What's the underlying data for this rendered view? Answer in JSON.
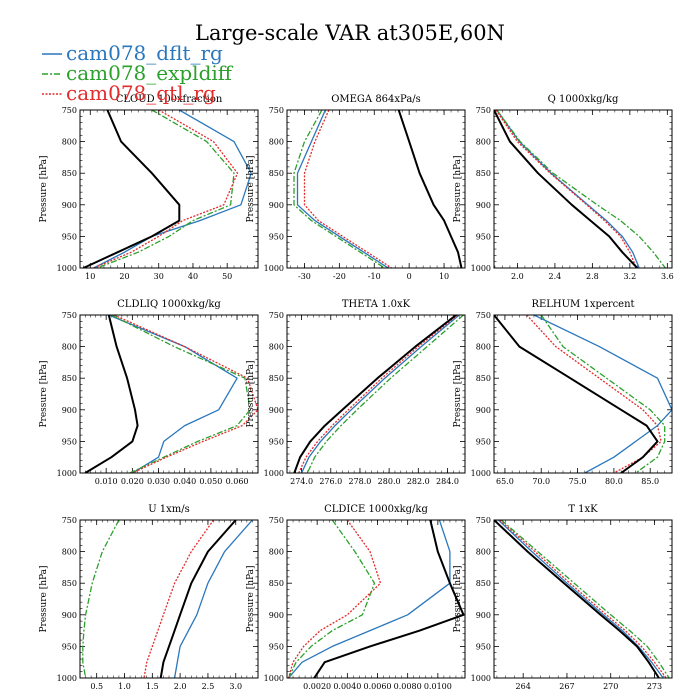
{
  "figure": {
    "title": "Large-scale VAR at305E,60N"
  },
  "legend": [
    {
      "label": "cam078_dflt_rg",
      "color": "#2a77bd",
      "dash": ""
    },
    {
      "label": "cam078_expldiff",
      "color": "#2ca02c",
      "dash": "6,2,2,2"
    },
    {
      "label": "cam078_qtl_rg",
      "color": "#e32b2b",
      "dash": "2,1.5"
    }
  ],
  "ref_series": {
    "label": "",
    "color": "#000000"
  },
  "chart_data": [
    {
      "type": "line",
      "title": "CLOUD 100xfraction",
      "ylabel": "Pressure [hPa]",
      "xlim": [
        7,
        59
      ],
      "ylim": [
        1000,
        750
      ],
      "xticks": [
        10,
        20,
        30,
        40,
        50
      ],
      "xticklabels": [
        "10",
        "20",
        "30",
        "40",
        "50"
      ],
      "yticks": [
        750,
        800,
        850,
        900,
        950,
        1000
      ],
      "levels": [
        750,
        800,
        850,
        900,
        925,
        950,
        975,
        1000
      ],
      "series": [
        {
          "name": "ref",
          "values": [
            15,
            19,
            28,
            36,
            36,
            28,
            18,
            8
          ]
        },
        {
          "name": "cam078_dflt_rg",
          "values": [
            36,
            52,
            57,
            54,
            42,
            28,
            20,
            11
          ]
        },
        {
          "name": "cam078_expldiff",
          "values": [
            28,
            44,
            52,
            51,
            40,
            33,
            24,
            12
          ]
        },
        {
          "name": "cam078_qtl_rg",
          "values": [
            30,
            46,
            53,
            49,
            37,
            30,
            22,
            11
          ]
        }
      ]
    },
    {
      "type": "line",
      "title": "OMEGA 864xPa/s",
      "ylabel": "Pressure [hPa]",
      "xlim": [
        -35,
        16
      ],
      "ylim": [
        1000,
        750
      ],
      "xticks": [
        -30,
        -20,
        -10,
        0,
        10
      ],
      "xticklabels": [
        "-30",
        "-20",
        "-10",
        "0",
        "10"
      ],
      "yticks": [
        750,
        800,
        850,
        900,
        950,
        1000
      ],
      "levels": [
        750,
        800,
        850,
        900,
        925,
        950,
        975,
        1000
      ],
      "series": [
        {
          "name": "ref",
          "values": [
            -3,
            0,
            3,
            7,
            10,
            12,
            14,
            15
          ]
        },
        {
          "name": "cam078_dflt_rg",
          "values": [
            -24,
            -28,
            -32,
            -32,
            -27,
            -20,
            -13,
            -6
          ]
        },
        {
          "name": "cam078_expldiff",
          "values": [
            -25,
            -30,
            -33,
            -33,
            -28,
            -21,
            -14,
            -7
          ]
        },
        {
          "name": "cam078_qtl_rg",
          "values": [
            -23,
            -27,
            -30,
            -30,
            -26,
            -19,
            -12,
            -5
          ]
        }
      ]
    },
    {
      "type": "line",
      "title": "Q 1000xkg/kg",
      "ylabel": "Pressure [hPa]",
      "xlim": [
        1.75,
        3.65
      ],
      "ylim": [
        1000,
        750
      ],
      "xticks": [
        2.0,
        2.4,
        2.8,
        3.2,
        3.6
      ],
      "xticklabels": [
        "2.0",
        "2.4",
        "2.8",
        "3.2",
        "3.6"
      ],
      "yticks": [
        750,
        800,
        850,
        900,
        950,
        1000
      ],
      "levels": [
        750,
        800,
        850,
        900,
        925,
        950,
        975,
        1000
      ],
      "series": [
        {
          "name": "ref",
          "values": [
            1.75,
            1.92,
            2.22,
            2.58,
            2.78,
            2.98,
            3.12,
            3.28
          ]
        },
        {
          "name": "cam078_dflt_rg",
          "values": [
            1.78,
            2.02,
            2.36,
            2.75,
            2.95,
            3.12,
            3.23,
            3.3
          ]
        },
        {
          "name": "cam078_expldiff",
          "values": [
            1.78,
            2.03,
            2.38,
            2.85,
            3.1,
            3.3,
            3.45,
            3.58
          ]
        },
        {
          "name": "cam078_qtl_rg",
          "values": [
            1.77,
            2.0,
            2.35,
            2.74,
            2.93,
            3.1,
            3.2,
            3.27
          ]
        }
      ]
    },
    {
      "type": "line",
      "title": "CLDLIQ 1000xkg/kg",
      "ylabel": "Pressure [hPa]",
      "xlim": [
        0.0,
        0.068
      ],
      "ylim": [
        1000,
        750
      ],
      "xticks": [
        0.01,
        0.02,
        0.03,
        0.04,
        0.05,
        0.06
      ],
      "xticklabels": [
        "0.010",
        "0.020",
        "0.030",
        "0.040",
        "0.050",
        "0.060"
      ],
      "yticks": [
        750,
        800,
        850,
        900,
        950,
        1000
      ],
      "levels": [
        750,
        800,
        850,
        900,
        925,
        950,
        975,
        1000
      ],
      "series": [
        {
          "name": "ref",
          "values": [
            0.011,
            0.014,
            0.018,
            0.021,
            0.022,
            0.02,
            0.012,
            0.002
          ]
        },
        {
          "name": "cam078_dflt_rg",
          "values": [
            0.011,
            0.04,
            0.06,
            0.053,
            0.04,
            0.032,
            0.03,
            0.02
          ]
        },
        {
          "name": "cam078_expldiff",
          "values": [
            0.012,
            0.036,
            0.063,
            0.065,
            0.06,
            0.045,
            0.032,
            0.019
          ]
        },
        {
          "name": "cam078_qtl_rg",
          "values": [
            0.013,
            0.04,
            0.064,
            0.068,
            0.062,
            0.047,
            0.033,
            0.02
          ]
        }
      ]
    },
    {
      "type": "line",
      "title": "THETA 1.0xK",
      "ylabel": "Pressure [hPa]",
      "xlim": [
        273.0,
        285.2
      ],
      "ylim": [
        1000,
        750
      ],
      "xticks": [
        274.0,
        276.0,
        278.0,
        280.0,
        282.0,
        284.0
      ],
      "xticklabels": [
        "274.0",
        "276.0",
        "278.0",
        "280.0",
        "282.0",
        "284.0"
      ],
      "yticks": [
        750,
        800,
        850,
        900,
        950,
        1000
      ],
      "levels": [
        750,
        800,
        850,
        900,
        925,
        950,
        975,
        1000
      ],
      "series": [
        {
          "name": "ref",
          "values": [
            284.6,
            281.8,
            279.2,
            276.8,
            275.6,
            274.6,
            273.9,
            273.5
          ]
        },
        {
          "name": "cam078_dflt_rg",
          "values": [
            284.8,
            282.2,
            279.7,
            277.4,
            276.3,
            275.3,
            274.5,
            274.0
          ]
        },
        {
          "name": "cam078_expldiff",
          "values": [
            285.1,
            282.6,
            280.1,
            277.8,
            276.7,
            275.7,
            274.9,
            274.4
          ]
        },
        {
          "name": "cam078_qtl_rg",
          "values": [
            284.7,
            282.0,
            279.5,
            277.2,
            276.1,
            275.1,
            274.3,
            273.8
          ]
        }
      ]
    },
    {
      "type": "line",
      "title": "RELHUM 1xpercent",
      "ylabel": "Pressure [hPa]",
      "xlim": [
        63.5,
        88
      ],
      "ylim": [
        1000,
        750
      ],
      "xticks": [
        65,
        70,
        75,
        80,
        85
      ],
      "xticklabels": [
        "65.0",
        "70.0",
        "75.0",
        "80.0",
        "85.0"
      ],
      "yticks": [
        750,
        800,
        850,
        900,
        950,
        1000
      ],
      "levels": [
        750,
        800,
        850,
        900,
        925,
        950,
        975,
        1000
      ],
      "series": [
        {
          "name": "ref",
          "values": [
            63.5,
            67,
            74,
            81,
            84.5,
            86,
            84,
            81
          ]
        },
        {
          "name": "cam078_dflt_rg",
          "values": [
            69,
            78,
            86,
            88,
            86,
            83,
            80,
            76
          ]
        },
        {
          "name": "cam078_expldiff",
          "values": [
            70,
            73,
            79,
            85,
            87,
            87,
            86,
            83
          ]
        },
        {
          "name": "cam078_qtl_rg",
          "values": [
            68,
            72,
            78,
            84,
            86,
            86.5,
            84,
            80
          ]
        }
      ]
    },
    {
      "type": "line",
      "title": "U 1xm/s",
      "ylabel": "Pressure [hPa]",
      "xlim": [
        0.2,
        3.4
      ],
      "ylim": [
        1000,
        750
      ],
      "xticks": [
        0.5,
        1.0,
        1.5,
        2.0,
        2.5,
        3.0
      ],
      "xticklabels": [
        "0.5",
        "1.0",
        "1.5",
        "2.0",
        "2.5",
        "3.0"
      ],
      "yticks": [
        750,
        800,
        850,
        900,
        950,
        1000
      ],
      "levels": [
        750,
        800,
        850,
        900,
        925,
        950,
        975,
        1000
      ],
      "series": [
        {
          "name": "ref",
          "values": [
            3.0,
            2.5,
            2.2,
            2.0,
            1.9,
            1.8,
            1.7,
            1.65
          ]
        },
        {
          "name": "cam078_dflt_rg",
          "values": [
            3.3,
            2.8,
            2.5,
            2.3,
            2.15,
            2.0,
            1.95,
            1.9
          ]
        },
        {
          "name": "cam078_expldiff",
          "values": [
            0.9,
            0.6,
            0.42,
            0.3,
            0.27,
            0.25,
            0.25,
            0.3
          ]
        },
        {
          "name": "cam078_qtl_rg",
          "values": [
            2.6,
            2.2,
            1.9,
            1.7,
            1.6,
            1.5,
            1.4,
            1.35
          ]
        }
      ]
    },
    {
      "type": "line",
      "title": "CLDICE 1000xkg/kg",
      "ylabel": "Pressure [hPa]",
      "xlim": [
        0.0,
        0.0118
      ],
      "ylim": [
        1000,
        750
      ],
      "xticks": [
        0.002,
        0.004,
        0.006,
        0.008,
        0.01
      ],
      "xticklabels": [
        "0.0020",
        "0.0040",
        "0.0060",
        "0.0080",
        "0.0100"
      ],
      "yticks": [
        750,
        800,
        850,
        900,
        950,
        1000
      ],
      "levels": [
        750,
        800,
        850,
        900,
        925,
        950,
        975,
        1000
      ],
      "series": [
        {
          "name": "ref",
          "values": [
            0.0095,
            0.01,
            0.0108,
            0.0117,
            0.0088,
            0.0055,
            0.0025,
            0.0018
          ]
        },
        {
          "name": "cam078_dflt_rg",
          "values": [
            0.0101,
            0.0108,
            0.0108,
            0.008,
            0.0055,
            0.003,
            0.001,
            0.0001
          ]
        },
        {
          "name": "cam078_expldiff",
          "values": [
            0.003,
            0.0045,
            0.0058,
            0.005,
            0.003,
            0.0016,
            0.0006,
            0.0001
          ]
        },
        {
          "name": "cam078_qtl_rg",
          "values": [
            0.004,
            0.0055,
            0.0062,
            0.004,
            0.0022,
            0.0011,
            0.0004,
            0.0001
          ]
        }
      ]
    },
    {
      "type": "line",
      "title": "T 1xK",
      "ylabel": "Pressure [hPa]",
      "xlim": [
        262,
        274.2
      ],
      "ylim": [
        1000,
        750
      ],
      "xticks": [
        264,
        267,
        270,
        273
      ],
      "xticklabels": [
        "264",
        "267",
        "270",
        "273"
      ],
      "yticks": [
        750,
        800,
        850,
        900,
        950,
        1000
      ],
      "levels": [
        750,
        800,
        850,
        900,
        925,
        950,
        975,
        1000
      ],
      "series": [
        {
          "name": "ref",
          "values": [
            262.0,
            264.3,
            266.8,
            269.3,
            270.6,
            271.8,
            272.6,
            273.3
          ]
        },
        {
          "name": "cam078_dflt_rg",
          "values": [
            262.3,
            264.6,
            267.0,
            269.5,
            270.8,
            271.9,
            272.8,
            273.6
          ]
        },
        {
          "name": "cam078_expldiff",
          "values": [
            262.5,
            265.0,
            267.5,
            270.0,
            271.3,
            272.5,
            273.3,
            274.0
          ]
        },
        {
          "name": "cam078_qtl_rg",
          "values": [
            262.4,
            264.8,
            267.2,
            269.7,
            271.0,
            272.1,
            273.0,
            273.8
          ]
        }
      ]
    }
  ]
}
